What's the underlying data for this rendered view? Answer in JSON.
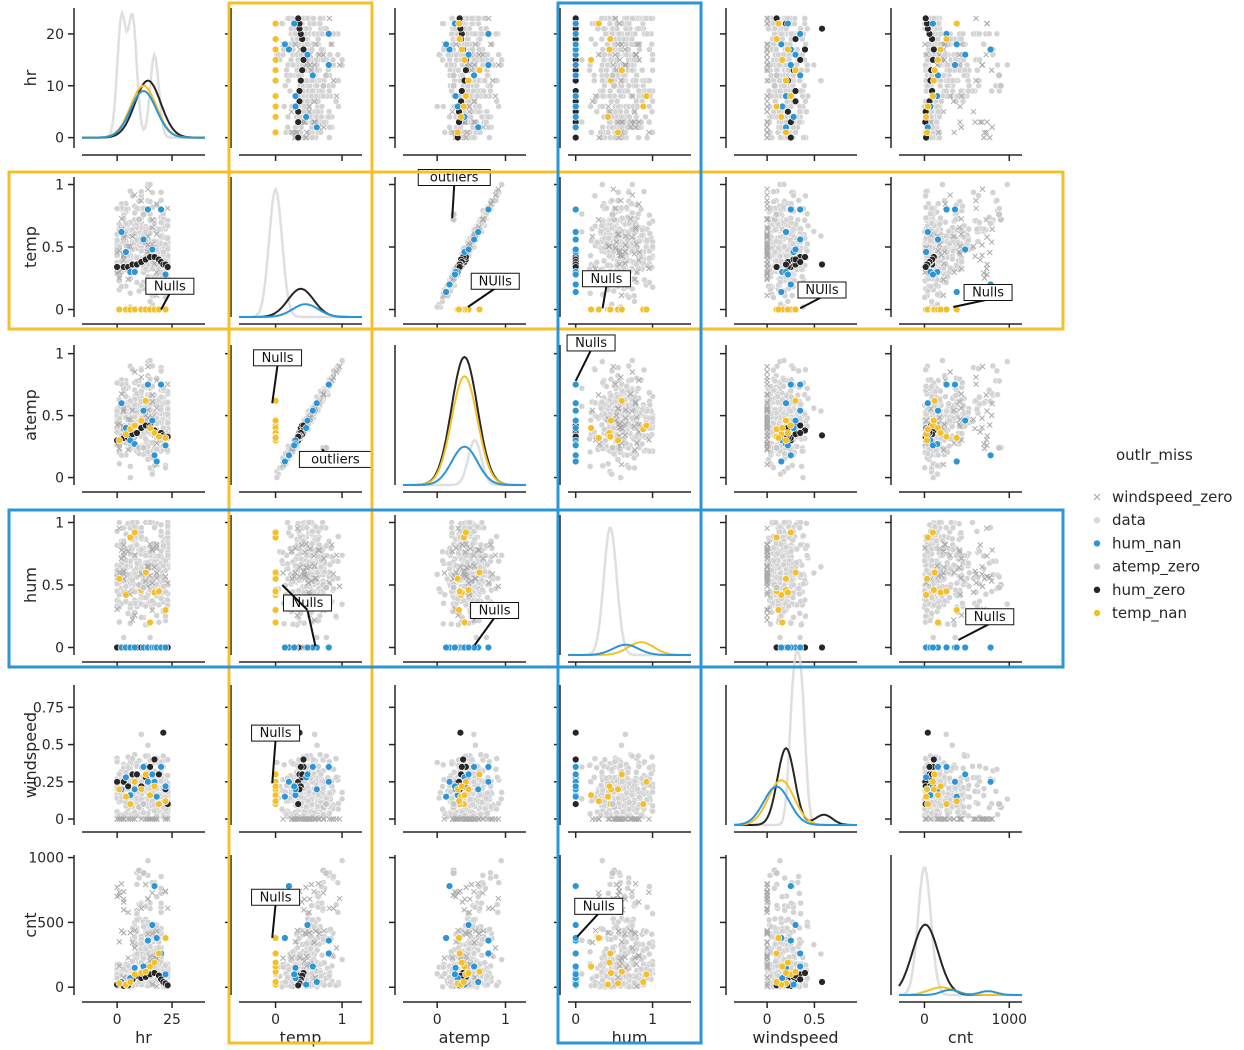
{
  "chart_data": {
    "type": "scatter",
    "kind": "pairplot",
    "variables": [
      "hr",
      "temp",
      "atemp",
      "hum",
      "windspeed",
      "cnt"
    ],
    "hue": "outlr_miss",
    "legend": {
      "title": "outlr_miss",
      "placement": "right",
      "entries": [
        {
          "name": "windspeed_zero",
          "color": "#a9a9a9",
          "marker": "x"
        },
        {
          "name": "data",
          "color": "#d9d9d9",
          "marker": "circle"
        },
        {
          "name": "hum_nan",
          "color": "#2b95d6",
          "marker": "circle"
        },
        {
          "name": "atemp_zero",
          "color": "#c8c8c8",
          "marker": "circle"
        },
        {
          "name": "hum_zero",
          "color": "#262626",
          "marker": "circle"
        },
        {
          "name": "temp_nan",
          "color": "#f4c02a",
          "marker": "circle"
        }
      ]
    },
    "axes": {
      "hr": {
        "range": [
          -16,
          40
        ],
        "ticks": [
          0,
          25
        ]
      },
      "temp": {
        "range": [
          -0.55,
          1.3
        ],
        "ticks": [
          0,
          1
        ]
      },
      "atemp": {
        "range": [
          -0.5,
          1.3
        ],
        "ticks": [
          0,
          1
        ]
      },
      "hum": {
        "range": [
          -0.1,
          1.5
        ],
        "ticks": [
          0,
          1
        ]
      },
      "windspeed": {
        "range": [
          -0.35,
          0.95
        ],
        "ticks": [
          0.0,
          0.5
        ]
      },
      "cnt": {
        "range": [
          -300,
          1150
        ],
        "ticks": [
          0,
          1000
        ]
      }
    },
    "row_axes": {
      "hr": {
        "range": [
          -2,
          25
        ],
        "ticks": [
          0,
          10,
          20
        ]
      },
      "temp": {
        "range": [
          -0.06,
          1.06
        ],
        "ticks": [
          0.0,
          0.5,
          1.0
        ]
      },
      "atemp": {
        "range": [
          -0.06,
          1.07
        ],
        "ticks": [
          0.0,
          0.5,
          1.0
        ]
      },
      "hum": {
        "range": [
          -0.06,
          1.06
        ],
        "ticks": [
          0.0,
          0.5,
          1.0
        ]
      },
      "windspeed": {
        "range": [
          -0.04,
          0.9
        ],
        "ticks": [
          0.0,
          0.25,
          0.5,
          0.75
        ]
      },
      "cnt": {
        "range": [
          -60,
          1020
        ],
        "ticks": [
          0,
          500,
          1000
        ]
      }
    },
    "highlights": [
      {
        "variable": "temp",
        "axis": "column",
        "color": "#f4c02a"
      },
      {
        "variable": "temp",
        "axis": "row",
        "color": "#f4c02a"
      },
      {
        "variable": "hum",
        "axis": "column",
        "color": "#2b95d6"
      },
      {
        "variable": "hum",
        "axis": "row",
        "color": "#2b95d6"
      }
    ],
    "annotations": [
      {
        "row": "temp",
        "col": "hr",
        "text": "Nulls",
        "x": 24,
        "y": 0.13,
        "tx": 20,
        "ty": 0.0
      },
      {
        "row": "temp",
        "col": "atemp",
        "text": "outliers",
        "x": 0.25,
        "y": 1.0,
        "tx": 0.22,
        "ty": 0.73
      },
      {
        "row": "temp",
        "col": "atemp",
        "text": "NUlls",
        "x": 0.85,
        "y": 0.17,
        "tx": 0.45,
        "ty": 0.02
      },
      {
        "row": "temp",
        "col": "hum",
        "text": "Nulls",
        "x": 0.4,
        "y": 0.19,
        "tx": 0.35,
        "ty": 0.01
      },
      {
        "row": "temp",
        "col": "windspeed",
        "text": "NUlls",
        "x": 0.58,
        "y": 0.1,
        "tx": 0.35,
        "ty": 0.01
      },
      {
        "row": "temp",
        "col": "cnt",
        "text": "Nulls",
        "x": 750,
        "y": 0.08,
        "tx": 340,
        "ty": 0.02
      },
      {
        "row": "atemp",
        "col": "temp",
        "text": "Nulls",
        "x": 0.03,
        "y": 0.91,
        "tx": -0.05,
        "ty": 0.6
      },
      {
        "row": "atemp",
        "col": "temp",
        "text": "outliers",
        "x": 0.9,
        "y": 0.09,
        "tx": 0.7,
        "ty": 0.23
      },
      {
        "row": "atemp",
        "col": "hum",
        "text": "Nulls",
        "x": 0.2,
        "y": 1.03,
        "tx": 0.0,
        "ty": 0.78
      },
      {
        "row": "hum",
        "col": "temp",
        "text": "Nulls",
        "x": 0.48,
        "y": 0.3,
        "tx": 0.6,
        "ty": 0.01
      },
      {
        "row": "hum",
        "col": "temp",
        "text": "",
        "x": 0.48,
        "y": 0.3,
        "tx": 0.1,
        "ty": 0.5
      },
      {
        "row": "hum",
        "col": "atemp",
        "text": "Nulls",
        "x": 0.84,
        "y": 0.24,
        "tx": 0.55,
        "ty": 0.02
      },
      {
        "row": "hum",
        "col": "cnt",
        "text": "Nulls",
        "x": 770,
        "y": 0.19,
        "tx": 400,
        "ty": 0.06
      },
      {
        "row": "windspeed",
        "col": "temp",
        "text": "Nulls",
        "x": 0.0,
        "y": 0.53,
        "tx": -0.05,
        "ty": 0.24
      },
      {
        "row": "cnt",
        "col": "temp",
        "text": "Nulls",
        "x": 0.0,
        "y": 640,
        "tx": -0.05,
        "ty": 380
      },
      {
        "row": "cnt",
        "col": "hum",
        "text": "Nulls",
        "x": 0.3,
        "y": 570,
        "tx": 0.02,
        "ty": 390
      }
    ],
    "series": [
      {
        "name": "hum_zero",
        "points": [
          {
            "hr": 0,
            "temp": 0.34,
            "atemp": 0.3,
            "hum": 0,
            "windspeed": 0.25,
            "cnt": 20
          },
          {
            "hr": 3,
            "temp": 0.34,
            "atemp": 0.32,
            "hum": 0,
            "windspeed": 0.25,
            "cnt": 10
          },
          {
            "hr": 5,
            "temp": 0.34,
            "atemp": 0.32,
            "hum": 0,
            "windspeed": 0.22,
            "cnt": 15
          },
          {
            "hr": 7,
            "temp": 0.36,
            "atemp": 0.35,
            "hum": 0,
            "windspeed": 0.3,
            "cnt": 60
          },
          {
            "hr": 9,
            "temp": 0.36,
            "atemp": 0.36,
            "hum": 0,
            "windspeed": 0.3,
            "cnt": 90
          },
          {
            "hr": 11,
            "temp": 0.38,
            "atemp": 0.4,
            "hum": 0,
            "windspeed": 0.22,
            "cnt": 70
          },
          {
            "hr": 13,
            "temp": 0.4,
            "atemp": 0.42,
            "hum": 0,
            "windspeed": 0.28,
            "cnt": 80
          },
          {
            "hr": 15,
            "temp": 0.42,
            "atemp": 0.42,
            "hum": 0,
            "windspeed": 0.35,
            "cnt": 100
          },
          {
            "hr": 17,
            "temp": 0.42,
            "atemp": 0.38,
            "hum": 0,
            "windspeed": 0.4,
            "cnt": 110
          },
          {
            "hr": 19,
            "temp": 0.4,
            "atemp": 0.35,
            "hum": 0,
            "windspeed": 0.3,
            "cnt": 90
          },
          {
            "hr": 20,
            "temp": 0.38,
            "atemp": 0.36,
            "hum": 0,
            "windspeed": 0.35,
            "cnt": 60
          },
          {
            "hr": 21,
            "temp": 0.36,
            "atemp": 0.34,
            "hum": 0,
            "windspeed": 0.58,
            "cnt": 40
          },
          {
            "hr": 22,
            "temp": 0.36,
            "atemp": 0.33,
            "hum": 0,
            "windspeed": 0.2,
            "cnt": 30
          },
          {
            "hr": 23,
            "temp": 0.34,
            "atemp": 0.33,
            "hum": 0,
            "windspeed": 0.1,
            "cnt": 15
          }
        ]
      },
      {
        "name": "hum_nan",
        "points": [
          {
            "hr": 2,
            "temp": 0.62,
            "atemp": 0.6,
            "hum": 0,
            "windspeed": 0.2,
            "cnt": 40
          },
          {
            "hr": 4,
            "temp": 0.46,
            "atemp": 0.4,
            "hum": 0,
            "windspeed": 0.28,
            "cnt": 20
          },
          {
            "hr": 6,
            "temp": 0.3,
            "atemp": 0.3,
            "hum": 0,
            "windspeed": 0.16,
            "cnt": 70
          },
          {
            "hr": 8,
            "temp": 0.3,
            "atemp": 0.27,
            "hum": 0,
            "windspeed": 0.2,
            "cnt": 150
          },
          {
            "hr": 12,
            "temp": 0.56,
            "atemp": 0.54,
            "hum": 0,
            "windspeed": 0.35,
            "cnt": 160
          },
          {
            "hr": 14,
            "temp": 0.8,
            "atemp": 0.75,
            "hum": 0,
            "windspeed": 0.25,
            "cnt": 360
          },
          {
            "hr": 16,
            "temp": 0.48,
            "atemp": 0.46,
            "hum": 0,
            "windspeed": 0.3,
            "cnt": 480
          },
          {
            "hr": 17,
            "temp": 0.2,
            "atemp": 0.18,
            "hum": 0,
            "windspeed": 0.25,
            "cnt": 780
          },
          {
            "hr": 18,
            "temp": 0.14,
            "atemp": 0.13,
            "hum": 0,
            "windspeed": 0.15,
            "cnt": 380
          },
          {
            "hr": 20,
            "temp": 0.8,
            "atemp": 0.75,
            "hum": 0,
            "windspeed": 0.35,
            "cnt": 260
          },
          {
            "hr": 22,
            "temp": 0.28,
            "atemp": 0.26,
            "hum": 0,
            "windspeed": 0.22,
            "cnt": 100
          }
        ]
      },
      {
        "name": "temp_nan",
        "points": [
          {
            "hr": 1,
            "temp": 0,
            "atemp": 0.3,
            "hum": 0.55,
            "windspeed": 0.2,
            "cnt": 30
          },
          {
            "hr": 4,
            "temp": 0,
            "atemp": 0.35,
            "hum": 0.42,
            "windspeed": 0.15,
            "cnt": 20
          },
          {
            "hr": 6,
            "temp": 0,
            "atemp": 0.39,
            "hum": 0.88,
            "windspeed": 0.1,
            "cnt": 40
          },
          {
            "hr": 8,
            "temp": 0,
            "atemp": 0.42,
            "hum": 0.92,
            "windspeed": 0.25,
            "cnt": 100
          },
          {
            "hr": 11,
            "temp": 0,
            "atemp": 0.46,
            "hum": 0.46,
            "windspeed": 0.2,
            "cnt": 110
          },
          {
            "hr": 13,
            "temp": 0,
            "atemp": 0.62,
            "hum": 0.6,
            "windspeed": 0.3,
            "cnt": 120
          },
          {
            "hr": 15,
            "temp": 0,
            "atemp": 0.4,
            "hum": 0.2,
            "windspeed": 0.16,
            "cnt": 160
          },
          {
            "hr": 17,
            "temp": 0,
            "atemp": 0.36,
            "hum": 0.44,
            "windspeed": 0.22,
            "cnt": 190
          },
          {
            "hr": 19,
            "temp": 0,
            "atemp": 0.33,
            "hum": 0.45,
            "windspeed": 0.1,
            "cnt": 260
          },
          {
            "hr": 22,
            "temp": 0,
            "atemp": 0.32,
            "hum": 0.3,
            "windspeed": 0.12,
            "cnt": 380
          }
        ]
      },
      {
        "name": "atemp_zero",
        "points": [
          {
            "hr": 10,
            "temp": 0.72,
            "atemp": 0.24,
            "hum": 0.5,
            "windspeed": 0.08,
            "cnt": 900
          },
          {
            "hr": 12,
            "temp": 0.76,
            "atemp": 0.24,
            "hum": 0.48,
            "windspeed": 0.1,
            "cnt": 880
          }
        ]
      }
    ],
    "diagonal_kde": [
      {
        "variable": "hr",
        "curves": [
          {
            "name": "data",
            "peaks": [
              [
                2,
                23
              ],
              [
                7,
                23
              ],
              [
                17,
                16
              ]
            ]
          },
          {
            "name": "hum_zero",
            "peaks": [
              [
                14,
                11
              ]
            ]
          },
          {
            "name": "temp_nan",
            "peaks": [
              [
                12,
                10
              ]
            ]
          },
          {
            "name": "hum_nan",
            "peaks": [
              [
                12,
                9
              ]
            ]
          }
        ]
      },
      {
        "variable": "temp",
        "curves": [
          {
            "name": "data",
            "peaks": [
              [
                0.0,
                1.0
              ]
            ]
          },
          {
            "name": "hum_zero",
            "peaks": [
              [
                0.38,
                0.22
              ]
            ]
          },
          {
            "name": "hum_nan",
            "peaks": [
              [
                0.45,
                0.1
              ]
            ]
          }
        ]
      },
      {
        "variable": "atemp",
        "curves": [
          {
            "name": "hum_zero",
            "peaks": [
              [
                0.4,
                1.0
              ]
            ]
          },
          {
            "name": "temp_nan",
            "peaks": [
              [
                0.4,
                0.85
              ]
            ]
          },
          {
            "name": "data",
            "peaks": [
              [
                0.55,
                0.35
              ]
            ]
          },
          {
            "name": "hum_nan",
            "peaks": [
              [
                0.4,
                0.3
              ]
            ]
          }
        ]
      },
      {
        "variable": "hum",
        "curves": [
          {
            "name": "data",
            "peaks": [
              [
                0.45,
                1.0
              ]
            ]
          },
          {
            "name": "temp_nan",
            "peaks": [
              [
                0.85,
                0.1
              ]
            ]
          },
          {
            "name": "hum_nan",
            "peaks": [
              [
                0.65,
                0.08
              ]
            ]
          }
        ]
      },
      {
        "variable": "windspeed",
        "curves": [
          {
            "name": "data",
            "peaks": [
              [
                0.28,
                1.0
              ],
              [
                0.36,
                1.0
              ]
            ]
          },
          {
            "name": "hum_zero",
            "peaks": [
              [
                0.2,
                0.6
              ],
              [
                0.6,
                0.08
              ]
            ]
          },
          {
            "name": "temp_nan",
            "peaks": [
              [
                0.15,
                0.35
              ]
            ]
          },
          {
            "name": "hum_nan",
            "peaks": [
              [
                0.1,
                0.3
              ]
            ]
          }
        ]
      },
      {
        "variable": "cnt",
        "curves": [
          {
            "name": "data",
            "peaks": [
              [
                0,
                1.0
              ]
            ]
          },
          {
            "name": "hum_zero",
            "peaks": [
              [
                10,
                0.55
              ]
            ]
          },
          {
            "name": "temp_nan",
            "peaks": [
              [
                200,
                0.06
              ]
            ]
          },
          {
            "name": "hum_nan",
            "peaks": [
              [
                300,
                0.04
              ],
              [
                750,
                0.03
              ]
            ]
          }
        ]
      }
    ]
  }
}
